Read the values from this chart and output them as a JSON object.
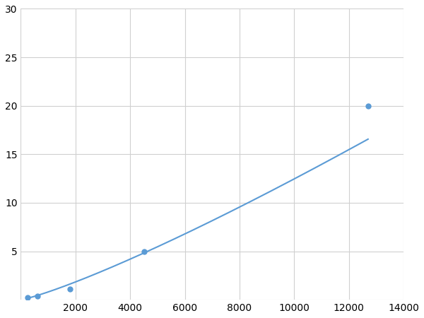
{
  "x": [
    250,
    600,
    1800,
    4500,
    12700
  ],
  "y": [
    0.2,
    0.4,
    1.1,
    5.0,
    20.0
  ],
  "line_color": "#5b9bd5",
  "marker_color": "#5b9bd5",
  "marker_size": 5,
  "line_width": 1.5,
  "xlim": [
    0,
    14000
  ],
  "ylim": [
    0,
    30
  ],
  "xticks": [
    0,
    2000,
    4000,
    6000,
    8000,
    10000,
    12000,
    14000
  ],
  "yticks": [
    0,
    5,
    10,
    15,
    20,
    25,
    30
  ],
  "grid_color": "#d0d0d0",
  "background_color": "#ffffff",
  "tick_fontsize": 10
}
